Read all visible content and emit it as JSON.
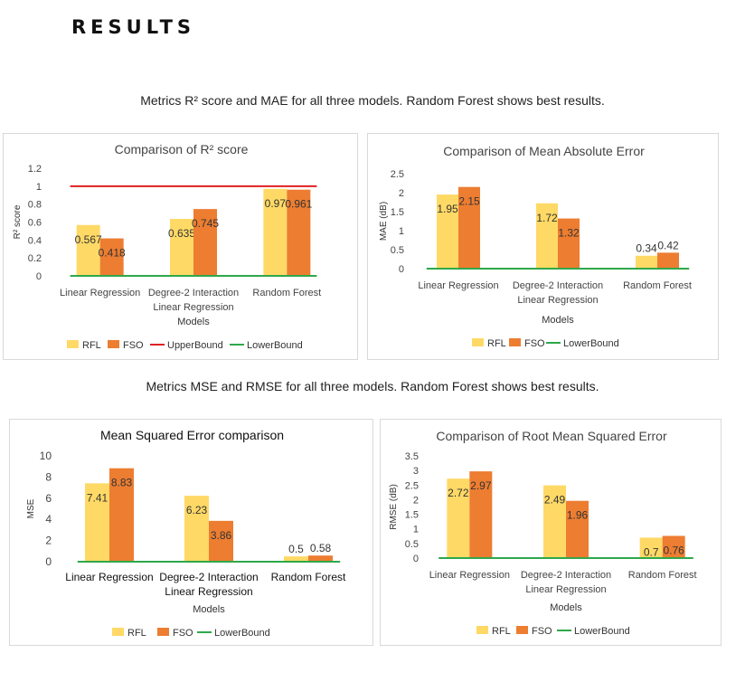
{
  "page": {
    "heading": "RESULTS",
    "caption_top": "Metrics R² score and MAE for all three models. Random Forest shows best results.",
    "caption_bottom": "Metrics MSE and RMSE for all three models. Random Forest shows best results."
  },
  "chart_data": [
    {
      "type": "bar",
      "title": "Comparison of R² score",
      "xlabel": "Models",
      "ylabel": "R² score",
      "categories": [
        "Linear Regression",
        "Degree-2 Interaction Linear Regression",
        "Random Forest"
      ],
      "yticks": [
        "0",
        "0.2",
        "0.4",
        "0.6",
        "0.8",
        "1",
        "1.2"
      ],
      "ylim": [
        0,
        1.2
      ],
      "series": [
        {
          "name": "RFL",
          "values": [
            0.567,
            0.635,
            0.97
          ],
          "labels": [
            "0.567",
            "0.635",
            "0.97"
          ],
          "color": "#FFD966"
        },
        {
          "name": "FSO",
          "values": [
            0.418,
            0.745,
            0.961
          ],
          "labels": [
            "0.418",
            "0.745",
            "0.961"
          ],
          "color": "#ED7D31"
        }
      ],
      "lines": [
        {
          "name": "UpperBound",
          "value": 1,
          "color": "#E02020"
        },
        {
          "name": "LowerBound",
          "value": 0,
          "color": "#2EA84A"
        }
      ]
    },
    {
      "type": "bar",
      "title": "Comparison of Mean Absolute Error",
      "xlabel": "Models",
      "ylabel": "MAE (dB)",
      "categories": [
        "Linear Regression",
        "Degree-2 Interaction Linear Regression",
        "Random Forest"
      ],
      "yticks": [
        "0",
        "0.5",
        "1",
        "1.5",
        "2",
        "2.5"
      ],
      "ylim": [
        0,
        2.5
      ],
      "series": [
        {
          "name": "RFL",
          "values": [
            1.95,
            1.72,
            0.34
          ],
          "labels": [
            "1.95",
            "1.72",
            "0.34"
          ],
          "color": "#FFD966"
        },
        {
          "name": "FSO",
          "values": [
            2.15,
            1.32,
            0.42
          ],
          "labels": [
            "2.15",
            "1.32",
            "0.42"
          ],
          "color": "#ED7D31"
        }
      ],
      "lines": [
        {
          "name": "LowerBound",
          "value": 0,
          "color": "#2EA84A"
        }
      ]
    },
    {
      "type": "bar",
      "title": "Mean Squared Error comparison",
      "xlabel": "Models",
      "ylabel": "MSE",
      "categories": [
        "Linear Regression",
        "Degree-2 Interaction Linear Regression",
        "Random Forest"
      ],
      "yticks": [
        "0",
        "2",
        "4",
        "6",
        "8",
        "10"
      ],
      "ylim": [
        0,
        10
      ],
      "series": [
        {
          "name": "RFL",
          "values": [
            7.41,
            6.23,
            0.5
          ],
          "labels": [
            "7.41",
            "6.23",
            "0.5"
          ],
          "color": "#FFD966"
        },
        {
          "name": "FSO",
          "values": [
            8.83,
            3.86,
            0.58
          ],
          "labels": [
            "8.83",
            "3.86",
            "0.58"
          ],
          "color": "#ED7D31"
        }
      ],
      "lines": [
        {
          "name": "LowerBound",
          "value": 0,
          "color": "#2EA84A"
        }
      ]
    },
    {
      "type": "bar",
      "title": "Comparison of Root Mean Squared Error",
      "xlabel": "Models",
      "ylabel": "RMSE (dB)",
      "categories": [
        "Linear Regression",
        "Degree-2 Interaction Linear Regression",
        "Random Forest"
      ],
      "yticks": [
        "0",
        "0.5",
        "1",
        "1.5",
        "2",
        "2.5",
        "3",
        "3.5"
      ],
      "ylim": [
        0,
        3.5
      ],
      "series": [
        {
          "name": "RFL",
          "values": [
            2.72,
            2.49,
            0.7
          ],
          "labels": [
            "2.72",
            "2.49",
            "0.7"
          ],
          "color": "#FFD966"
        },
        {
          "name": "FSO",
          "values": [
            2.97,
            1.96,
            0.76
          ],
          "labels": [
            "2.97",
            "1.96",
            "0.76"
          ],
          "color": "#ED7D31"
        }
      ],
      "lines": [
        {
          "name": "LowerBound",
          "value": 0,
          "color": "#2EA84A"
        }
      ]
    }
  ]
}
